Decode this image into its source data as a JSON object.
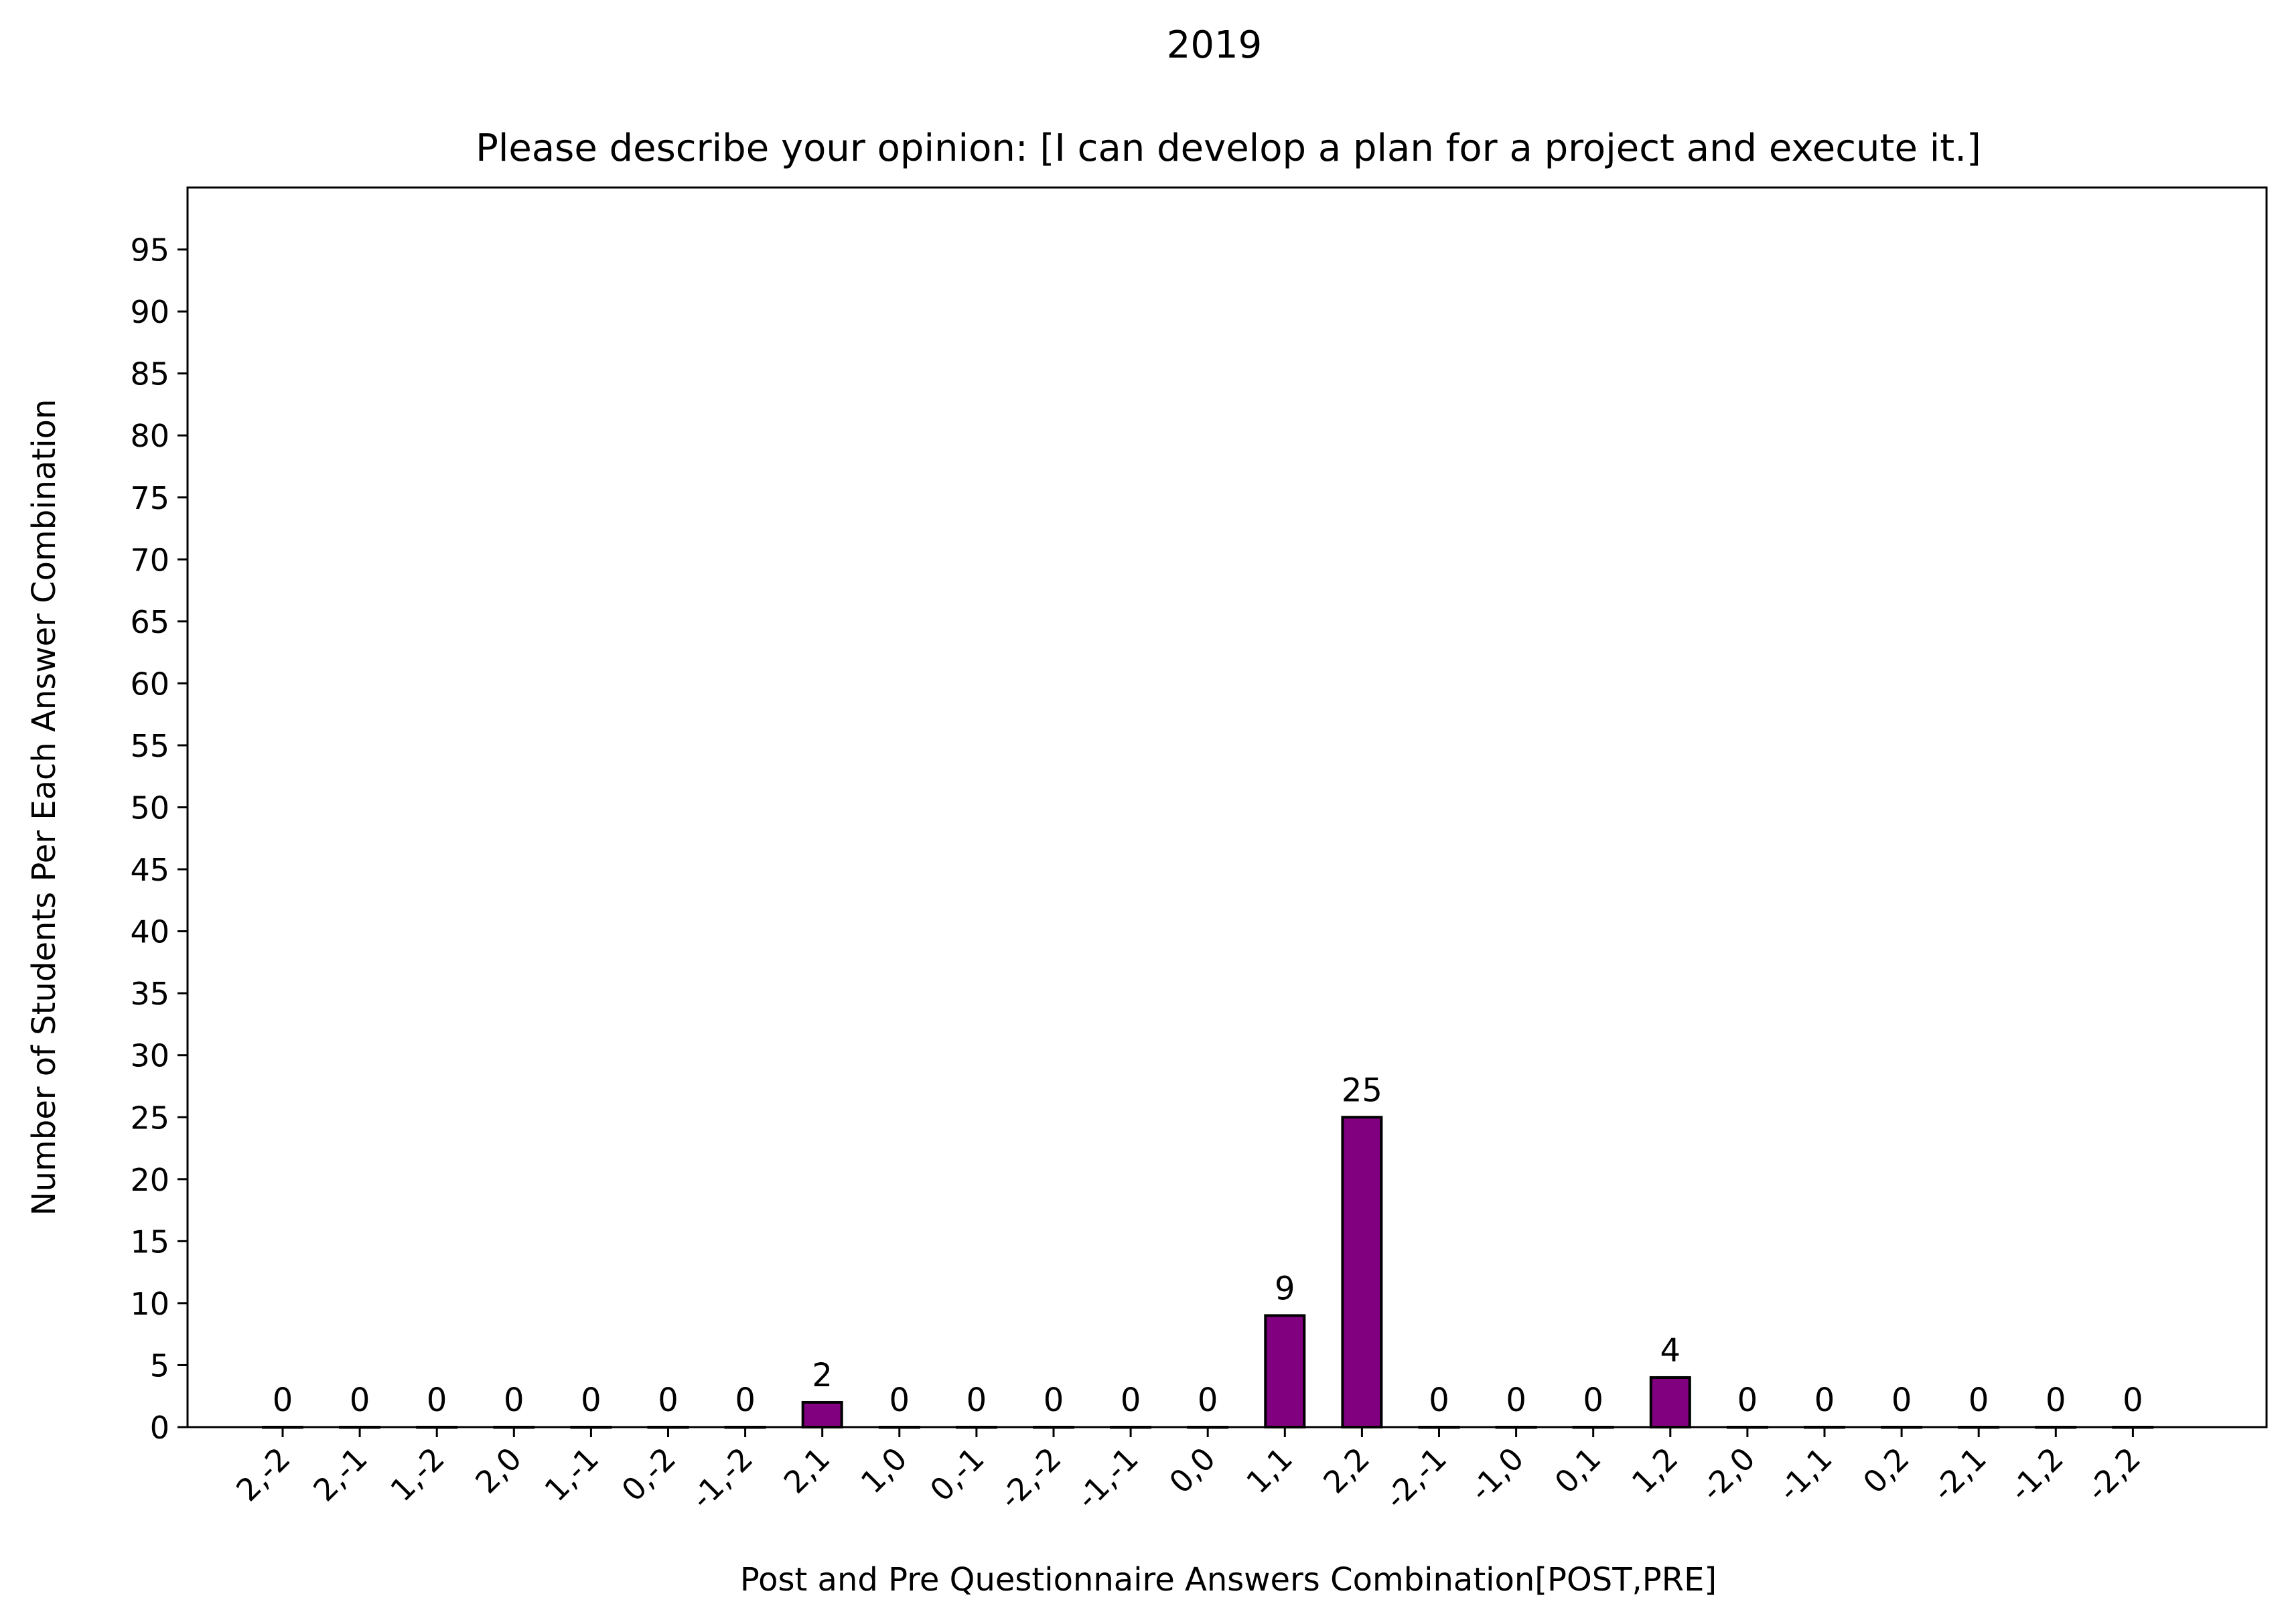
{
  "chart_data": {
    "type": "bar",
    "suptitle": "2019",
    "title": "Please describe your opinion: [I can develop a plan for a project and execute it.]",
    "xlabel": "Post and Pre Questionnaire Answers Combination[POST,PRE]",
    "ylabel": "Number of Students Per Each Answer Combination",
    "categories": [
      "2,-2",
      "2,-1",
      "1,-2",
      "2,0",
      "1,-1",
      "0,-2",
      "-1,-2",
      "2,1",
      "1,0",
      "0,-1",
      "-2,-2",
      "-1,-1",
      "0,0",
      "1,1",
      "2,2",
      "-2,-1",
      "-1,0",
      "0,1",
      "1,2",
      "-2,0",
      "-1,1",
      "0,2",
      "-2,1",
      "-1,2",
      "-2,2"
    ],
    "values": [
      0,
      0,
      0,
      0,
      0,
      0,
      0,
      2,
      0,
      0,
      0,
      0,
      0,
      9,
      25,
      0,
      0,
      0,
      4,
      0,
      0,
      0,
      0,
      0,
      0
    ],
    "ylim": [
      0,
      100
    ],
    "yticks": [
      0,
      5,
      10,
      15,
      20,
      25,
      30,
      35,
      40,
      45,
      50,
      55,
      60,
      65,
      70,
      75,
      80,
      85,
      90,
      95
    ],
    "bar_color": "#800080",
    "edge_color": "#000000",
    "grid": false,
    "show_value_labels": true
  }
}
